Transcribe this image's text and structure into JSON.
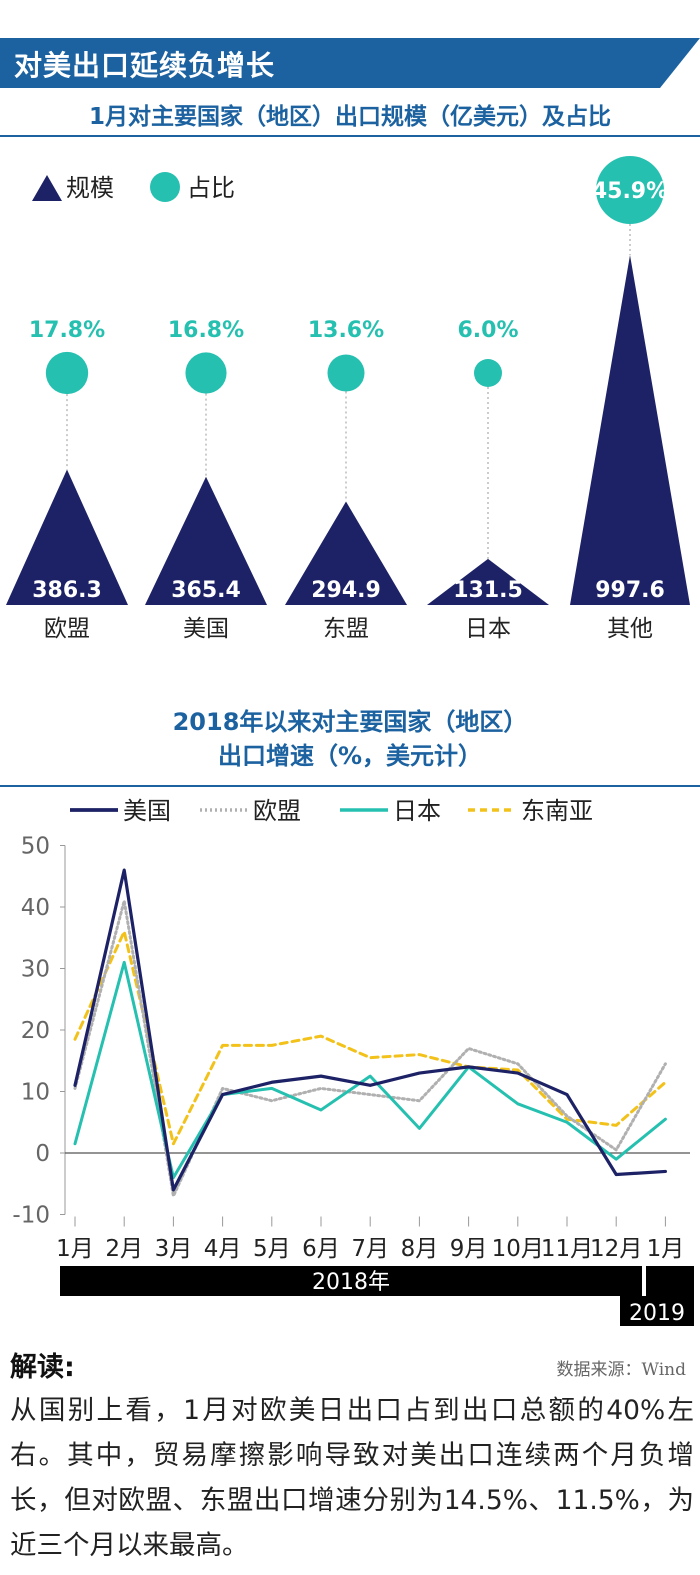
{
  "header": {
    "title": "对美出口延续负增长"
  },
  "chart1": {
    "title": "1月对主要国家（地区）出口规模（亿美元）及占比",
    "legend": [
      {
        "name": "规模",
        "icon": "triangle-icon"
      },
      {
        "name": "占比",
        "icon": "circle-icon"
      }
    ]
  },
  "chart2": {
    "title_line1": "2018年以来对主要国家（地区）",
    "title_line2": "出口增速（%，美元计）",
    "band_2018": "2018年",
    "band_2019": "2019"
  },
  "interpretation": {
    "heading": "解读:",
    "source": "数据来源：Wind",
    "text": "从国别上看，1月对欧美日出口占到出口总额的40%左右。其中，贸易摩擦影响导致对美出口连续两个月负增长，但对欧盟、东盟出口增速分别为14.5%、11.5%，为近三个月以来最高。"
  },
  "colors": {
    "navy": "#1d2266",
    "teal": "#26c0b0",
    "blue": "#1c62a0",
    "grey": "#b0b0b0",
    "yellow": "#f2c21b"
  },
  "chart_data": [
    {
      "type": "bar",
      "title": "1月对主要国家（地区）出口规模（亿美元）及占比",
      "categories": [
        "欧盟",
        "美国",
        "东盟",
        "日本",
        "其他"
      ],
      "series": [
        {
          "name": "规模",
          "values": [
            386.3,
            365.4,
            294.9,
            131.5,
            997.6
          ],
          "labels": [
            "386.3",
            "365.4",
            "294.9",
            "131.5",
            "997.6"
          ]
        },
        {
          "name": "占比",
          "values": [
            17.8,
            16.8,
            13.6,
            6.0,
            45.9
          ],
          "labels": [
            "17.8%",
            "16.8%",
            "13.6%",
            "6.0%",
            "45.9%"
          ]
        }
      ]
    },
    {
      "type": "line",
      "title": "2018年以来对主要国家（地区）出口增速（%，美元计）",
      "categories": [
        "1月",
        "2月",
        "3月",
        "4月",
        "5月",
        "6月",
        "7月",
        "8月",
        "9月",
        "10月",
        "11月",
        "12月",
        "1月"
      ],
      "ylim": [
        -10,
        50
      ],
      "yticks": [
        "-10",
        "0",
        "10",
        "20",
        "30",
        "40",
        "50"
      ],
      "series": [
        {
          "name": "美国",
          "style": "solid-navy",
          "values": [
            11,
            46,
            -6,
            9.5,
            11.5,
            12.5,
            11,
            13,
            14,
            13,
            9.5,
            -3.5,
            -3
          ]
        },
        {
          "name": "欧盟",
          "style": "dotted-grey",
          "values": [
            10.5,
            41,
            -7,
            10.5,
            8.5,
            10.5,
            9.5,
            8.5,
            17,
            14.5,
            6,
            0.5,
            14.5
          ]
        },
        {
          "name": "日本",
          "style": "solid-teal",
          "values": [
            1.5,
            31,
            -4,
            9.5,
            10.5,
            7,
            12.5,
            4,
            14,
            8,
            5,
            -1,
            5.5
          ]
        },
        {
          "name": "东南亚",
          "style": "dashed-yellow",
          "values": [
            18.5,
            36,
            1.5,
            17.5,
            17.5,
            19,
            15.5,
            16,
            14,
            13.5,
            5.5,
            4.5,
            11.5
          ]
        }
      ]
    }
  ]
}
